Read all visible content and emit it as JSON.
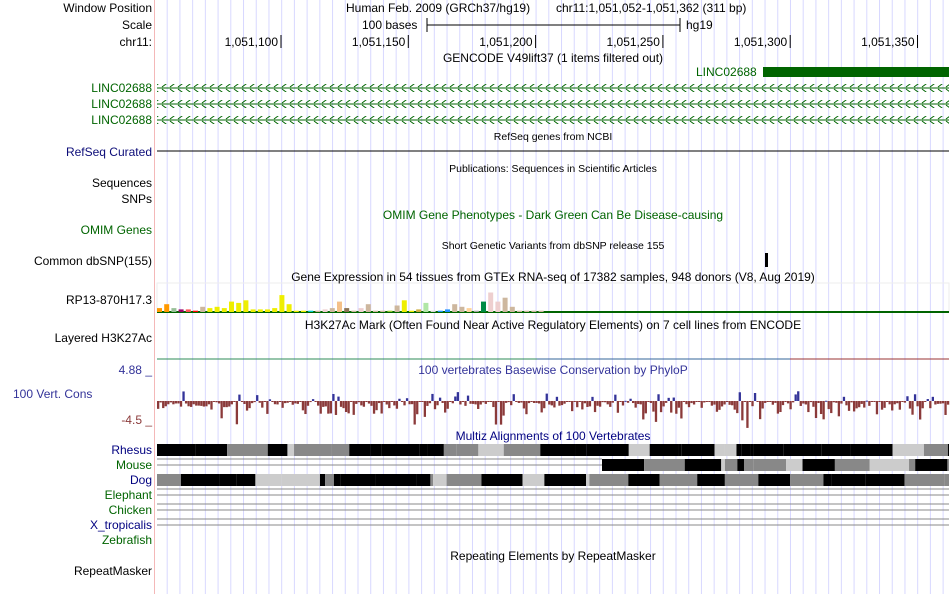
{
  "header": {
    "window_position_label": "Window Position",
    "assembly": "Human Feb. 2009 (GRCh37/hg19)",
    "position": "chr11:1,051,052-1,051,362 (311 bp)",
    "scale_label": "Scale",
    "scale_bar_label": "100 bases",
    "scale_db": "hg19",
    "chrom_label": "chr11:",
    "ticks": [
      "1,051,100",
      "1,051,150",
      "1,051,200",
      "1,051,250",
      "1,051,300",
      "1,051,350"
    ]
  },
  "tracks": {
    "gencode": {
      "title": "GENCODE V49lift37 (1 items filtered out)",
      "items": [
        "LINC02688",
        "LINC02688",
        "LINC02688",
        "LINC02688"
      ]
    },
    "refseq": {
      "title": "RefSeq genes from NCBI",
      "label": "RefSeq Curated"
    },
    "publications": {
      "title": "Publications: Sequences in Scientific Articles",
      "labels": [
        "Sequences",
        "SNPs"
      ]
    },
    "omim": {
      "title": "OMIM Gene Phenotypes - Dark Green Can Be Disease-causing",
      "label": "OMIM Genes"
    },
    "dbsnp": {
      "title": "Short Genetic Variants from dbSNP release 155",
      "label": "Common dbSNP(155)"
    },
    "gtex": {
      "title": "Gene Expression in 54 tissues from GTEx RNA-seq of 17382 samples, 948 donors (V8, Aug 2019)",
      "label": "RP13-870H17.3"
    },
    "h3k27ac": {
      "title": "H3K27Ac Mark (Often Found Near Active Regulatory Elements) on 7 cell lines from ENCODE",
      "label": "Layered H3K27Ac"
    },
    "phylop": {
      "title": "100 vertebrates Basewise Conservation by PhyloP",
      "label": "100 Vert. Cons",
      "max": "4.88 _",
      "min": "-4.5 _"
    },
    "multiz": {
      "title": "Multiz Alignments of 100 Vertebrates",
      "species": [
        "Rhesus",
        "Mouse",
        "Dog",
        "Elephant",
        "Chicken",
        "X_tropicalis",
        "Zebrafish"
      ]
    },
    "rmsk": {
      "title": "Repeating Elements by RepeatMasker",
      "label": "RepeatMasker"
    }
  },
  "colors": {
    "gene": "#006400",
    "refseq_label": "#0c0c78",
    "phylop_pos": "#333399",
    "phylop_neg": "#8b3a3a",
    "grid": "#ccccff"
  }
}
